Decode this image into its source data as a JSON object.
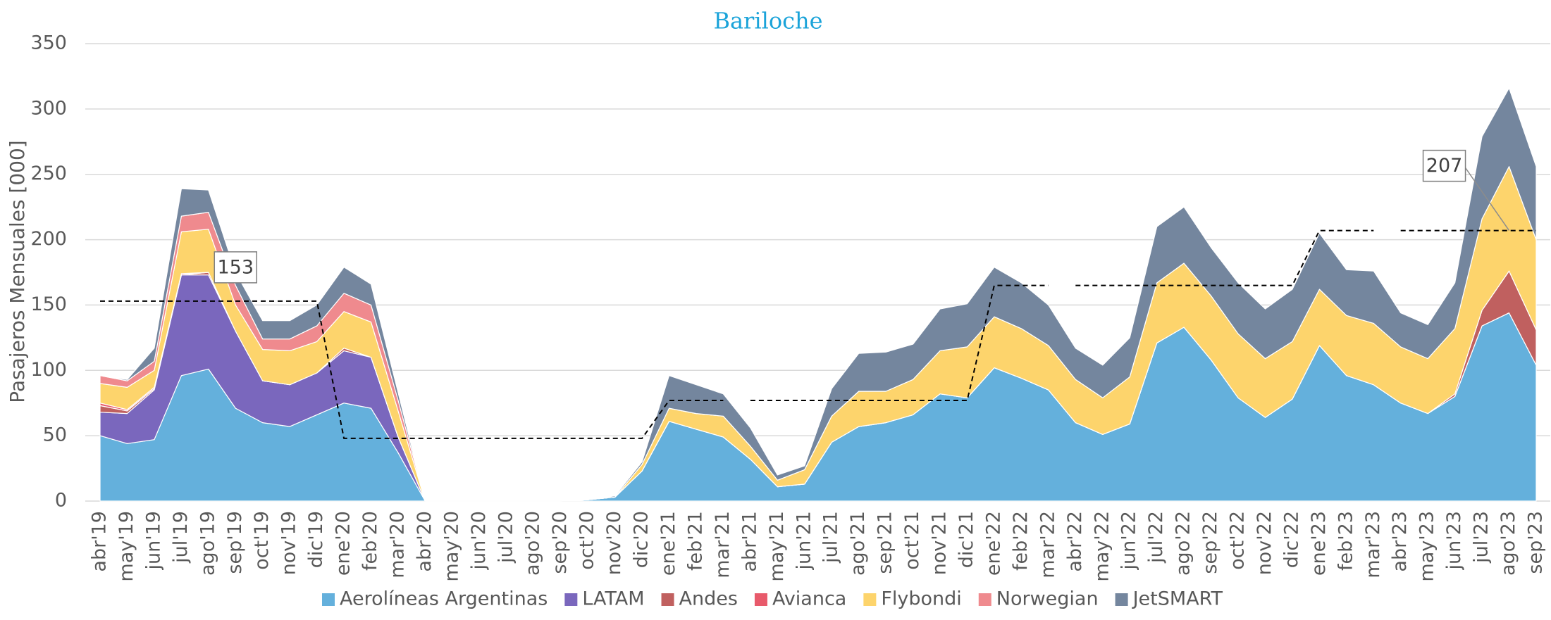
{
  "chart_data": {
    "type": "stacked_area",
    "title": "Bariloche",
    "y_label": "Pasajeros Mensuales [000]",
    "categories": [
      "abr'19",
      "may'19",
      "jun'19",
      "jul'19",
      "ago'19",
      "sep'19",
      "oct'19",
      "nov'19",
      "dic'19",
      "ene'20",
      "feb'20",
      "mar'20",
      "abr'20",
      "may'20",
      "jun'20",
      "jul'20",
      "ago'20",
      "sep'20",
      "oct'20",
      "nov'20",
      "dic'20",
      "ene'21",
      "feb'21",
      "mar'21",
      "abr'21",
      "may'21",
      "jun'21",
      "jul'21",
      "ago'21",
      "sep'21",
      "oct'21",
      "nov'21",
      "dic'21",
      "ene'22",
      "feb'22",
      "mar'22",
      "abr'22",
      "may'22",
      "jun'22",
      "jul'22",
      "ago'22",
      "sep'22",
      "oct'22",
      "nov'22",
      "dic'22",
      "ene'23",
      "feb'23",
      "mar'23",
      "abr'23",
      "may'23",
      "jun'23",
      "jul'23",
      "ago'23",
      "sep'23"
    ],
    "series": [
      {
        "name": "Aerolíneas Argentinas",
        "color": "#64b0dc",
        "values": [
          50,
          44,
          47,
          96,
          101,
          71,
          60,
          57,
          66,
          75,
          71,
          37,
          0,
          0,
          0,
          0,
          0,
          0,
          1,
          3,
          23,
          61,
          55,
          49,
          32,
          11,
          13,
          45,
          57,
          60,
          66,
          82,
          79,
          102,
          94,
          85,
          60,
          51,
          59,
          121,
          133,
          108,
          79,
          64,
          78,
          119,
          96,
          89,
          75,
          67,
          80,
          134,
          144,
          104
        ]
      },
      {
        "name": "LATAM",
        "color": "#7a67bd",
        "values": [
          18,
          23,
          38,
          77,
          72,
          59,
          32,
          32,
          32,
          40,
          39,
          12,
          0,
          0,
          0,
          0,
          0,
          0,
          0,
          0,
          0,
          0,
          0,
          0,
          0,
          0,
          0,
          0,
          0,
          0,
          0,
          0,
          0,
          0,
          0,
          0,
          0,
          0,
          0,
          0,
          0,
          0,
          0,
          0,
          0,
          0,
          0,
          0,
          0,
          0,
          0,
          0,
          0,
          0
        ]
      },
      {
        "name": "Andes",
        "color": "#c0605f",
        "values": [
          5,
          2,
          1,
          0,
          2,
          0,
          0,
          0,
          0,
          2,
          0,
          0,
          0,
          0,
          0,
          0,
          0,
          0,
          0,
          0,
          0,
          0,
          0,
          0,
          0,
          0,
          0,
          0,
          0,
          0,
          0,
          0,
          0,
          0,
          0,
          0,
          0,
          0,
          0,
          0,
          0,
          0,
          0,
          0,
          0,
          0,
          0,
          0,
          0,
          0,
          2,
          12,
          32,
          27
        ]
      },
      {
        "name": "Avianca",
        "color": "#e85a6b",
        "values": [
          2,
          1,
          1,
          1,
          0,
          0,
          0,
          0,
          0,
          0,
          0,
          0,
          0,
          0,
          0,
          0,
          0,
          0,
          0,
          0,
          0,
          0,
          0,
          0,
          0,
          0,
          0,
          0,
          0,
          0,
          0,
          0,
          0,
          0,
          0,
          0,
          0,
          0,
          0,
          0,
          0,
          0,
          0,
          0,
          0,
          0,
          0,
          0,
          0,
          0,
          0,
          0,
          0,
          0
        ]
      },
      {
        "name": "Flybondi",
        "color": "#fdd46c",
        "values": [
          15,
          17,
          13,
          32,
          33,
          20,
          24,
          26,
          24,
          28,
          27,
          20,
          0,
          0,
          0,
          0,
          0,
          0,
          0,
          0,
          5,
          10,
          12,
          16,
          10,
          5,
          11,
          20,
          27,
          24,
          27,
          33,
          39,
          39,
          38,
          34,
          33,
          28,
          36,
          46,
          49,
          49,
          49,
          45,
          44,
          43,
          46,
          47,
          43,
          42,
          50,
          70,
          80,
          69
        ]
      },
      {
        "name": "Norwegian",
        "color": "#ef8a8e",
        "values": [
          6,
          5,
          7,
          12,
          13,
          15,
          8,
          9,
          12,
          14,
          13,
          8,
          0,
          0,
          0,
          0,
          0,
          0,
          0,
          0,
          0,
          0,
          0,
          0,
          0,
          0,
          0,
          0,
          0,
          0,
          0,
          0,
          0,
          0,
          0,
          0,
          0,
          0,
          0,
          0,
          0,
          0,
          0,
          0,
          0,
          0,
          0,
          0,
          0,
          0,
          0,
          0,
          0,
          0
        ]
      },
      {
        "name": "JetSMART",
        "color": "#74869e",
        "values": [
          0,
          1,
          10,
          21,
          17,
          10,
          14,
          14,
          16,
          20,
          16,
          6,
          0,
          0,
          0,
          0,
          0,
          0,
          0,
          1,
          2,
          25,
          22,
          17,
          14,
          4,
          3,
          21,
          29,
          30,
          27,
          32,
          33,
          38,
          35,
          31,
          24,
          25,
          30,
          43,
          43,
          37,
          39,
          38,
          40,
          43,
          35,
          40,
          26,
          26,
          35,
          63,
          60,
          56
        ]
      }
    ],
    "reference_lines": [
      {
        "categories": [
          "abr'19",
          "may'19",
          "jun'19",
          "jul'19",
          "ago'19",
          "sep'19",
          "oct'19",
          "nov'19",
          "dic'19",
          "ene'20",
          "feb'20",
          "mar'20",
          "abr'20",
          "may'20",
          "jun'20",
          "jul'20",
          "ago'20",
          "sep'20",
          "oct'20",
          "nov'20",
          "dic'20",
          "ene'21",
          "feb'21",
          "mar'21"
        ],
        "values": [
          153,
          153,
          153,
          153,
          153,
          153,
          153,
          153,
          153,
          48,
          48,
          48,
          48,
          48,
          48,
          48,
          48,
          48,
          48,
          48,
          48,
          77,
          77,
          77
        ]
      },
      {
        "categories": [
          "abr'21",
          "may'21",
          "jun'21",
          "jul'21",
          "ago'21",
          "sep'21",
          "oct'21",
          "nov'21",
          "dic'21",
          "ene'22",
          "feb'22",
          "mar'22"
        ],
        "values": [
          77,
          77,
          77,
          77,
          77,
          77,
          77,
          77,
          77,
          165,
          165,
          165
        ]
      },
      {
        "categories": [
          "abr'22",
          "may'22",
          "jun'22",
          "jul'22",
          "ago'22",
          "sep'22",
          "oct'22",
          "nov'22",
          "dic'22",
          "ene'23",
          "feb'23",
          "mar'23"
        ],
        "values": [
          165,
          165,
          165,
          165,
          165,
          165,
          165,
          165,
          165,
          207,
          207,
          207
        ]
      },
      {
        "categories": [
          "abr'23",
          "may'23",
          "jun'23",
          "jul'23",
          "ago'23",
          "sep'23"
        ],
        "values": [
          207,
          207,
          207,
          207,
          207,
          207
        ]
      }
    ],
    "annotations": [
      {
        "value": 153,
        "category": "sep'19"
      },
      {
        "value": 207,
        "category": "ago'23"
      }
    ],
    "ylim": [
      0,
      350
    ],
    "yticks": [
      0,
      50,
      100,
      150,
      200,
      250,
      300,
      350
    ],
    "grid": true,
    "legend": "bottom"
  }
}
